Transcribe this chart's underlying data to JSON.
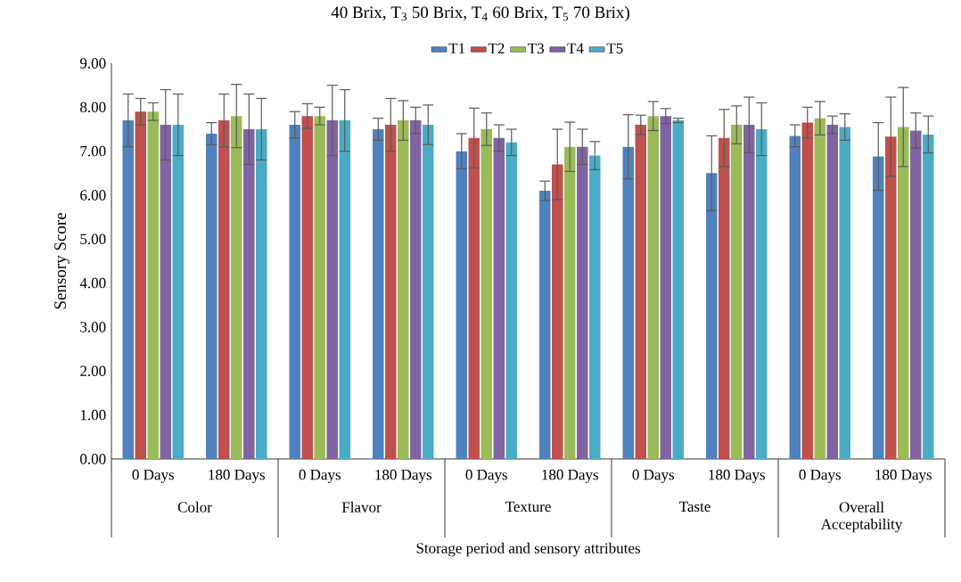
{
  "chart_data": {
    "type": "bar",
    "title": "40 Brix, T$_{3}$ 50 Brix, T$_{4}$ 60 Brix, T$_{5}$ 70 Brix)",
    "xlabel": "Storage period and sensory attributes",
    "ylabel": "Sensory Score",
    "categories": [
      "0 Days",
      "180 Days",
      "0 Days",
      "180 Days",
      "0 Days",
      "180 Days",
      "0 Days",
      "180 Days",
      "0 Days",
      "180 Days"
    ],
    "annotations": [
      "Color",
      "Flavor",
      "Texture",
      "Taste",
      "Overall Acceptability"
    ],
    "series": [
      {
        "name": "T1",
        "color": "#4f81bd",
        "values": [
          7.7,
          7.4,
          7.6,
          7.5,
          7.0,
          6.1,
          7.1,
          6.5,
          7.35,
          6.88
        ],
        "errors": [
          0.6,
          0.25,
          0.3,
          0.25,
          0.4,
          0.22,
          0.73,
          0.85,
          0.25,
          0.77
        ]
      },
      {
        "name": "T2",
        "color": "#c0504d",
        "values": [
          7.9,
          7.7,
          7.8,
          7.6,
          7.3,
          6.7,
          7.6,
          7.3,
          7.65,
          7.33
        ],
        "errors": [
          0.3,
          0.6,
          0.28,
          0.6,
          0.68,
          0.8,
          0.22,
          0.65,
          0.35,
          0.9
        ]
      },
      {
        "name": "T3",
        "color": "#9bbb59",
        "values": [
          7.9,
          7.8,
          7.8,
          7.7,
          7.5,
          7.1,
          7.8,
          7.6,
          7.75,
          7.55
        ],
        "errors": [
          0.2,
          0.72,
          0.2,
          0.45,
          0.37,
          0.56,
          0.33,
          0.43,
          0.38,
          0.9
        ]
      },
      {
        "name": "T4",
        "color": "#8064a2",
        "values": [
          7.6,
          7.5,
          7.7,
          7.7,
          7.3,
          7.1,
          7.8,
          7.6,
          7.6,
          7.47
        ],
        "errors": [
          0.8,
          0.8,
          0.8,
          0.3,
          0.3,
          0.4,
          0.17,
          0.63,
          0.2,
          0.4
        ]
      },
      {
        "name": "T5",
        "color": "#4bacc6",
        "values": [
          7.6,
          7.5,
          7.7,
          7.6,
          7.2,
          6.9,
          7.7,
          7.5,
          7.55,
          7.38
        ],
        "errors": [
          0.7,
          0.7,
          0.7,
          0.45,
          0.3,
          0.32,
          0.05,
          0.6,
          0.3,
          0.42
        ]
      }
    ],
    "ylim": [
      0,
      9
    ],
    "yticks": [
      {
        "value": 0,
        "label": "0.00"
      },
      {
        "value": 1,
        "label": "1.00"
      },
      {
        "value": 2,
        "label": "2.00"
      },
      {
        "value": 3,
        "label": "3.00"
      },
      {
        "value": 4,
        "label": "4.00"
      },
      {
        "value": 5,
        "label": "5.00"
      },
      {
        "value": 6,
        "label": "6.00"
      },
      {
        "value": 7,
        "label": "7.00"
      },
      {
        "value": 8,
        "label": "8.00"
      },
      {
        "value": 9,
        "label": "9.00"
      }
    ],
    "grid": false,
    "legend": "top"
  }
}
